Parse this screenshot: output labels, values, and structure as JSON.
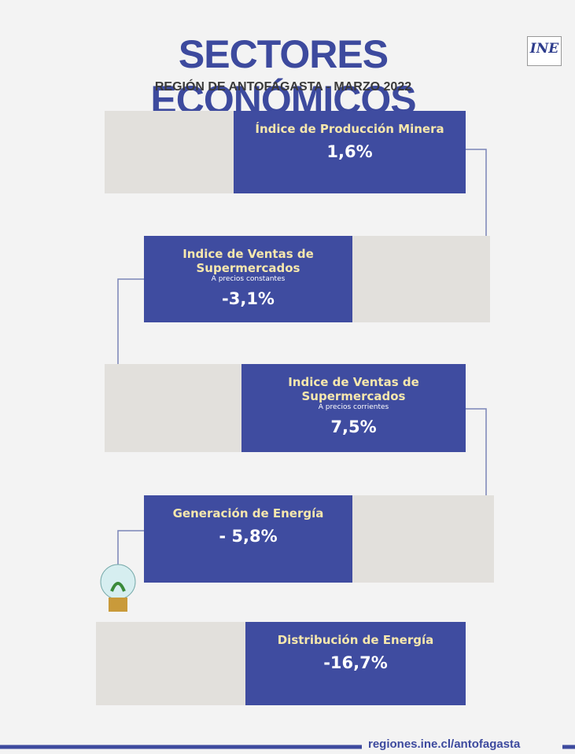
{
  "header": {
    "title": "SECTORES ECONÓMICOS",
    "subtitle": "REGIÓN DE ANTOFAGASTA - MARZO 2022",
    "logo": "INE"
  },
  "cards": [
    {
      "title": "Índice de Producción Minera",
      "value": "1,6%"
    },
    {
      "title": "Indice de Ventas de Supermercados",
      "subtitle": "A precios constantes",
      "value": "-3,1%"
    },
    {
      "title": "Indice de Ventas de Supermercados",
      "subtitle": "A precios corrientes",
      "value": "7,5%"
    },
    {
      "title": "Generación de Energía",
      "value": "- 5,8%"
    },
    {
      "title": "Distribución de Energía",
      "value": "-16,7%"
    }
  ],
  "footer": {
    "url": "regiones.ine.cl/antofagasta"
  }
}
